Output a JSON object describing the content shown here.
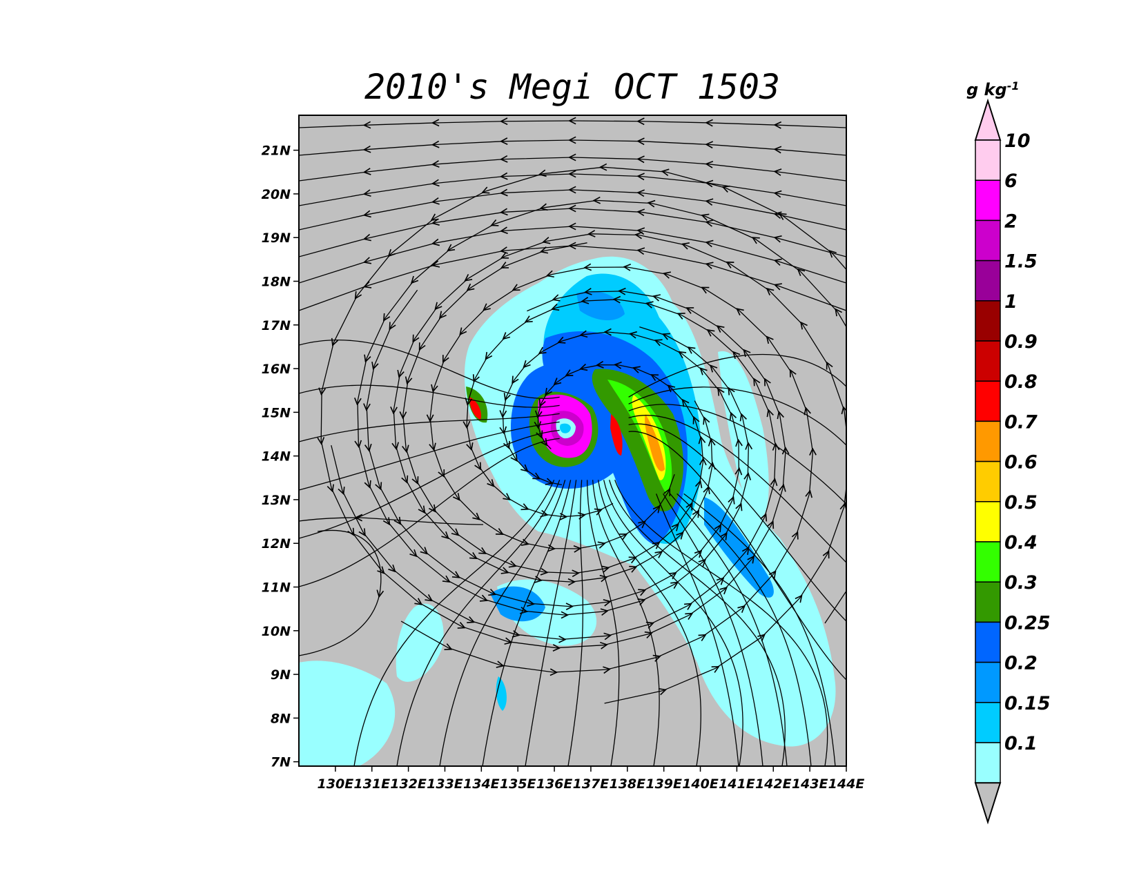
{
  "title": "2010's Megi OCT 1503",
  "map": {
    "lon_labels": [
      "130E",
      "131E",
      "132E",
      "133E",
      "134E",
      "135E",
      "136E",
      "137E",
      "138E",
      "139E",
      "140E",
      "141E",
      "142E",
      "143E",
      "144E"
    ],
    "lat_labels": [
      "21N",
      "20N",
      "19N",
      "18N",
      "17N",
      "16N",
      "15N",
      "14N",
      "13N",
      "12N",
      "11N",
      "10N",
      "9N",
      "8N",
      "7N"
    ],
    "lon_range": [
      129.0,
      144.0
    ],
    "lat_range": [
      6.9,
      21.8
    ],
    "background_color": "#c0c0c0",
    "storm_center": {
      "lon": 136.9,
      "lat": 14.4
    }
  },
  "colorbar": {
    "unit_label": "g  kg",
    "unit_exponent": "-1",
    "levels": [
      "10",
      "6",
      "2",
      "1.5",
      "1",
      "0.9",
      "0.8",
      "0.7",
      "0.6",
      "0.5",
      "0.4",
      "0.3",
      "0.25",
      "0.2",
      "0.15",
      "0.1"
    ],
    "colors": [
      "#ffccee",
      "#ff00ff",
      "#cc00cc",
      "#990099",
      "#990000",
      "#cc0000",
      "#ff0000",
      "#ff9900",
      "#ffcc00",
      "#ffff00",
      "#33ff00",
      "#339900",
      "#0066ff",
      "#0099ff",
      "#00ccff",
      "#99ffff"
    ],
    "below_color": "#c0c0c0"
  }
}
